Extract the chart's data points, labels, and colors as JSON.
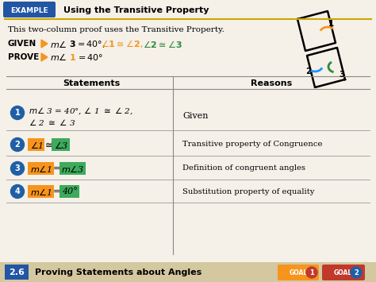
{
  "title_example": "EXAMPLE",
  "title_text": "Using the Transitive Property",
  "intro": "This two-column proof uses the Transitive Property.",
  "given_label": "GIVEN",
  "prove_label": "PROVE",
  "col1_header": "Statements",
  "col2_header": "Reasons",
  "footer_text": "2.6",
  "footer_sub": "Proving Statements about Angles",
  "goal1": "GOAL 1",
  "goal2": "GOAL 2",
  "colors": {
    "example_bg": "#2255A4",
    "title_line": "#C8A800",
    "given_arrow": "#F7941D",
    "blue_text": "#1F5FA6",
    "orange_text": "#F7941D",
    "green_text": "#2E8B3C",
    "circle_bg": "#1F5FA6",
    "orange_box": "#F7941D",
    "green_box": "#3DAA5C",
    "footer_bg": "#D4C8A0",
    "footer_num_bg": "#2255A4",
    "goal1_bg": "#F7941D",
    "goal2_bg": "#C0392B",
    "arc1_color": "#F7941D",
    "arc2_color": "#1E90FF",
    "arc3_color": "#2E8B3C",
    "bg": "#F5F0E8"
  }
}
